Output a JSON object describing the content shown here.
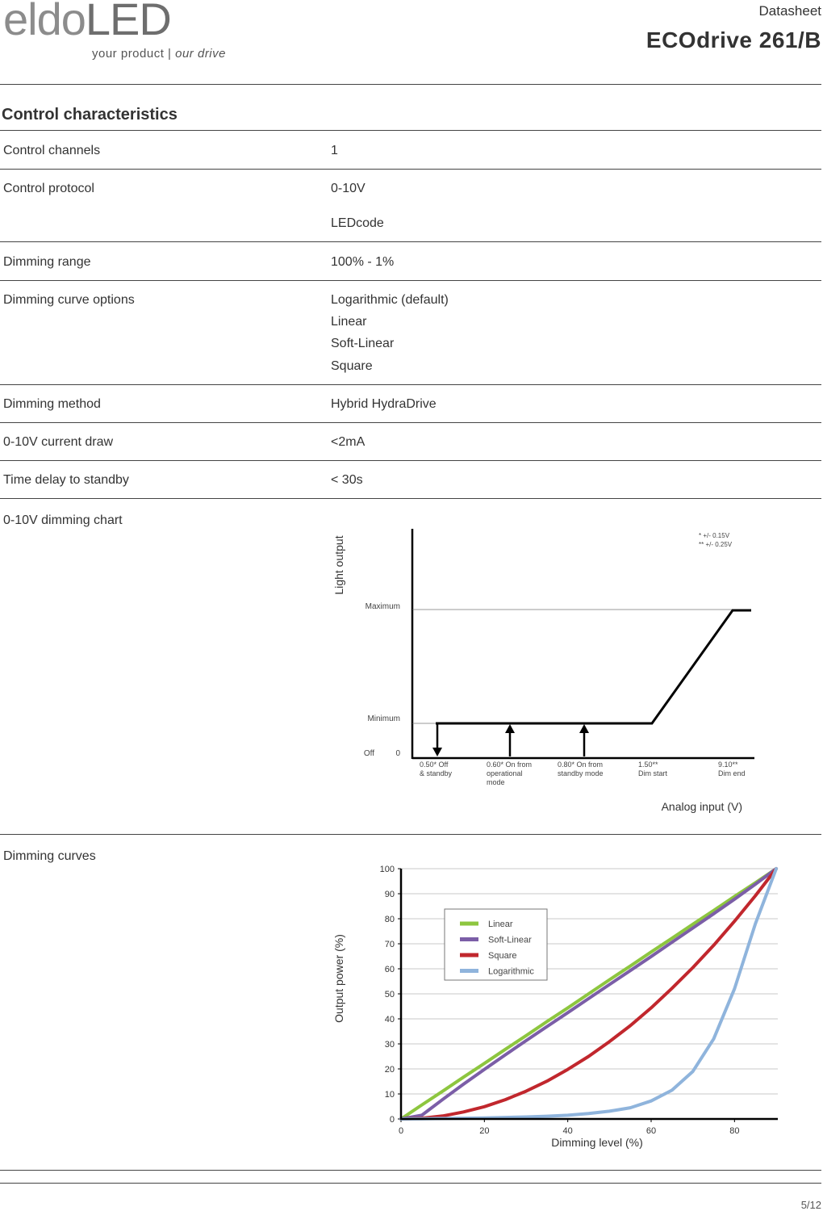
{
  "header": {
    "logo_prefix": "eldo",
    "logo_suffix": "LED",
    "tagline_a": "your product | ",
    "tagline_b": "our drive",
    "doc_type": "Datasheet",
    "product": "ECOdrive 261/B"
  },
  "section_title": "Control characteristics",
  "specs": {
    "channels": {
      "label": "Control channels",
      "values": [
        "1"
      ]
    },
    "protocol": {
      "label": "Control protocol",
      "values": [
        "0-10V",
        "LEDcode"
      ]
    },
    "range": {
      "label": "Dimming range",
      "values": [
        "100% - 1%"
      ]
    },
    "curves": {
      "label": "Dimming curve options",
      "values": [
        "Logarithmic (default)",
        "Linear",
        "Soft-Linear",
        "Square"
      ]
    },
    "method": {
      "label": "Dimming method",
      "values": [
        "Hybrid HydraDrive"
      ]
    },
    "current": {
      "label": "0-10V current draw",
      "values": [
        "<2mA"
      ]
    },
    "delay": {
      "label": "Time delay to standby",
      "values": [
        "< 30s"
      ]
    },
    "dim_chart": {
      "label": "0-10V dimming chart"
    },
    "dim_curves": {
      "label": "Dimming curves"
    }
  },
  "colors": {
    "linear": "#8dc63f",
    "soft_linear": "#7b5ea7",
    "square": "#c1272d",
    "logarithmic": "#8fb4dc"
  },
  "chart_data": [
    {
      "type": "line",
      "ylabel": "Light output",
      "xlabel": "Analog input (V)",
      "y_levels": {
        "max": "Maximum",
        "min": "Minimum",
        "off_a": "Off",
        "off_b": "0"
      },
      "notes": [
        "* +/- 0.15V",
        "** +/- 0.25V"
      ],
      "x_markers": [
        {
          "lines": [
            "0.50* Off",
            "& standby"
          ]
        },
        {
          "lines": [
            "0.60* On from",
            "operational",
            "mode"
          ]
        },
        {
          "lines": [
            "0.80* On from",
            "standby mode"
          ]
        },
        {
          "lines": [
            "1.50**",
            "Dim start"
          ]
        },
        {
          "lines": [
            "9.10**",
            "Dim end"
          ]
        }
      ]
    },
    {
      "type": "line",
      "xlabel": "Dimming level (%)",
      "ylabel": "Output power (%)",
      "xlim": [
        0,
        90
      ],
      "ylim": [
        0,
        100
      ],
      "x_ticks": [
        "0",
        "20",
        "40",
        "60",
        "80"
      ],
      "y_ticks": [
        "0",
        "10",
        "20",
        "30",
        "40",
        "50",
        "60",
        "70",
        "80",
        "90",
        "100"
      ],
      "grid": true,
      "legend": "top-left",
      "x": [
        0,
        5,
        10,
        15,
        20,
        25,
        30,
        35,
        40,
        45,
        50,
        55,
        60,
        65,
        70,
        75,
        80,
        85,
        90
      ],
      "series": [
        {
          "name": "Linear",
          "color_key": "linear",
          "values": [
            0,
            5.6,
            11.1,
            16.7,
            22.2,
            27.8,
            33.3,
            38.9,
            44.4,
            50,
            55.6,
            61.1,
            66.7,
            72.2,
            77.8,
            83.3,
            88.9,
            94.4,
            100
          ]
        },
        {
          "name": "Soft-Linear",
          "color_key": "soft_linear",
          "values": [
            0,
            1.5,
            7.8,
            13.9,
            19.8,
            25.6,
            31.3,
            36.9,
            42.5,
            48.1,
            53.7,
            59.3,
            64.9,
            70.6,
            76.3,
            82,
            87.8,
            93.8,
            100
          ]
        },
        {
          "name": "Square",
          "color_key": "square",
          "values": [
            0,
            0.3,
            1.2,
            2.8,
            4.9,
            7.7,
            11.1,
            15.1,
            19.8,
            25,
            30.9,
            37.3,
            44.4,
            52.2,
            60.5,
            69.4,
            79,
            89.2,
            100
          ]
        },
        {
          "name": "Logarithmic",
          "color_key": "logarithmic",
          "values": [
            0,
            0.1,
            0.2,
            0.3,
            0.4,
            0.6,
            0.8,
            1.1,
            1.5,
            2.2,
            3.1,
            4.5,
            7.2,
            11.5,
            19,
            32,
            52,
            78,
            100
          ]
        }
      ]
    }
  ],
  "page_number": "5/12"
}
